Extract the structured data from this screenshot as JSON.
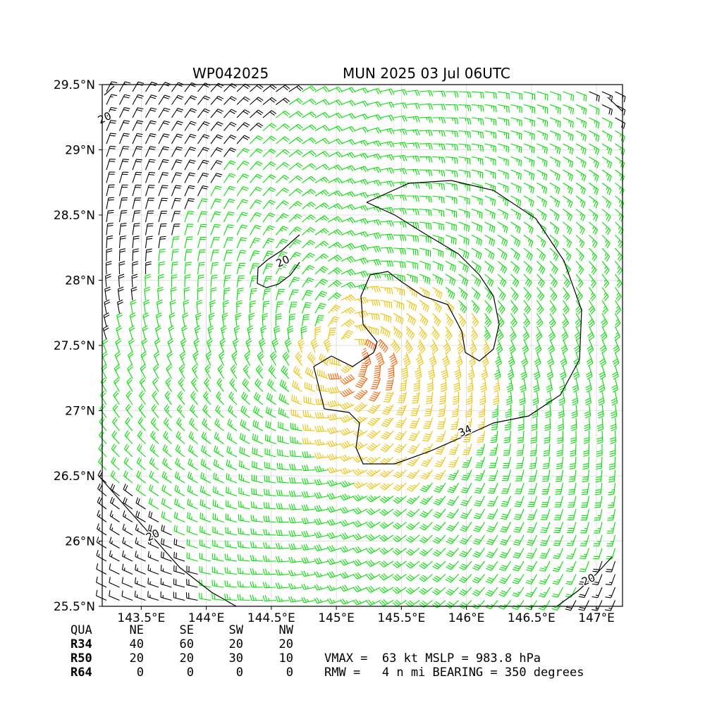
{
  "header": {
    "storm_id": "WP042025",
    "storm_info": "MUN 2025 03 Jul 06UTC"
  },
  "chart_data": {
    "type": "wind-barb-map",
    "xlim": [
      143.2,
      147.2
    ],
    "ylim": [
      25.5,
      29.5
    ],
    "x_ticks": [
      {
        "value": 143.5,
        "label": "143.5°E"
      },
      {
        "value": 144.0,
        "label": "144°E"
      },
      {
        "value": 144.5,
        "label": "144.5°E"
      },
      {
        "value": 145.0,
        "label": "145°E"
      },
      {
        "value": 145.5,
        "label": "145.5°E"
      },
      {
        "value": 146.0,
        "label": "146°E"
      },
      {
        "value": 146.5,
        "label": "146.5°E"
      },
      {
        "value": 147.0,
        "label": "147°E"
      }
    ],
    "y_ticks": [
      {
        "value": 25.5,
        "label": "25.5°N"
      },
      {
        "value": 26.0,
        "label": "26°N"
      },
      {
        "value": 26.5,
        "label": "26.5°N"
      },
      {
        "value": 27.0,
        "label": "27°N"
      },
      {
        "value": 27.5,
        "label": "27.5°N"
      },
      {
        "value": 28.0,
        "label": "28°N"
      },
      {
        "value": 28.5,
        "label": "28.5°N"
      },
      {
        "value": 29.0,
        "label": "29°N"
      },
      {
        "value": 29.5,
        "label": "29.5°N"
      }
    ],
    "grid": true,
    "center": {
      "lon": 145.1,
      "lat": 27.45
    },
    "wind_speed_colors": {
      "below_20kt": "#000000",
      "20_to_34kt": "#00e000",
      "34_to_50kt": "#f0c000",
      "50_to_64kt": "#ff6000"
    },
    "contour_labels": [
      {
        "text": "34",
        "lon": 146.0,
        "lat": 26.82
      },
      {
        "text": "20",
        "lon": 144.6,
        "lat": 28.12
      },
      {
        "text": "20",
        "lon": 143.6,
        "lat": 26.02
      },
      {
        "text": "20",
        "lon": 146.95,
        "lat": 25.68
      },
      {
        "text": "20",
        "lon": 143.23,
        "lat": 29.22
      }
    ]
  },
  "wind_radii": {
    "headers": [
      "QUA",
      "NE",
      "SE",
      "SW",
      "NW"
    ],
    "rows": [
      {
        "label": "R34",
        "values": [
          "40",
          "60",
          "20",
          "20"
        ]
      },
      {
        "label": "R50",
        "values": [
          "20",
          "20",
          "30",
          "10"
        ]
      },
      {
        "label": "R64",
        "values": [
          "0",
          "0",
          "0",
          "0"
        ]
      }
    ]
  },
  "summary": {
    "line1": "VMAX =  63 kt MSLP = 983.8 hPa",
    "line2": "RMW =   4 n mi BEARING = 350 degrees"
  }
}
